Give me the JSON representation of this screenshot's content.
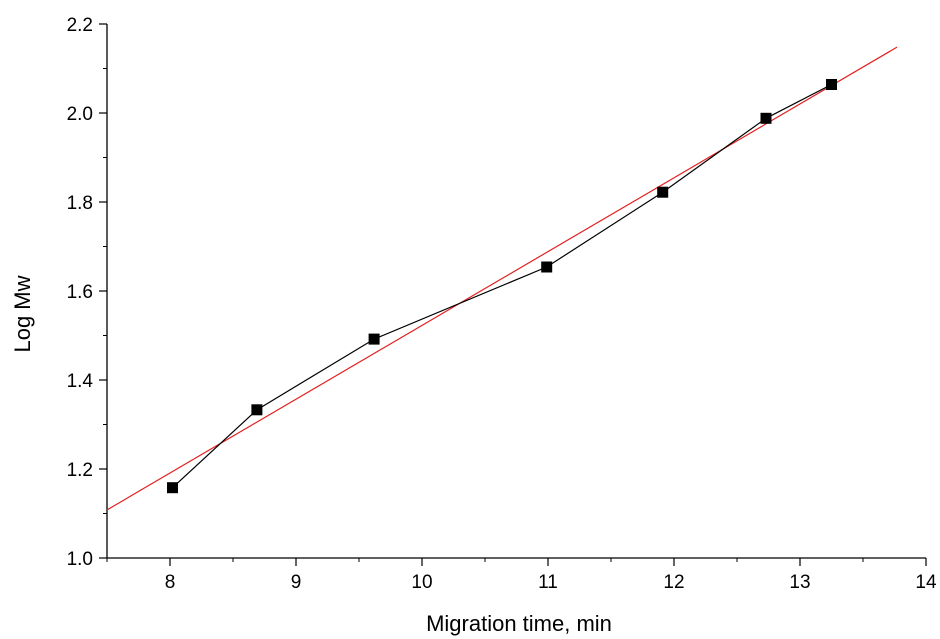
{
  "chart_data": {
    "type": "scatter",
    "title": "",
    "xlabel": "Migration time, min",
    "ylabel": "Log Mw",
    "xlim": [
      7.5,
      14
    ],
    "ylim": [
      1.0,
      2.2
    ],
    "x_ticks": [
      8,
      9,
      10,
      11,
      12,
      13,
      14
    ],
    "x_tick_labels": [
      "8",
      "9",
      "10",
      "11",
      "12",
      "13",
      "14"
    ],
    "y_ticks": [
      1.0,
      1.2,
      1.4,
      1.6,
      1.8,
      2.0,
      2.2
    ],
    "y_tick_labels": [
      "1.0",
      "1.2",
      "1.4",
      "1.6",
      "1.8",
      "2.0",
      "2.2"
    ],
    "grid": false,
    "series": [
      {
        "marker": "square",
        "color": "#000000",
        "line": true,
        "x": [
          8.02,
          8.69,
          9.62,
          10.99,
          11.91,
          12.73,
          13.25
        ],
        "y": [
          1.158,
          1.333,
          1.492,
          1.654,
          1.822,
          1.988,
          2.064
        ]
      }
    ],
    "fit_line": {
      "color": "#e32020",
      "x": [
        7.5,
        13.77
      ],
      "y": [
        1.108,
        2.148
      ]
    }
  }
}
